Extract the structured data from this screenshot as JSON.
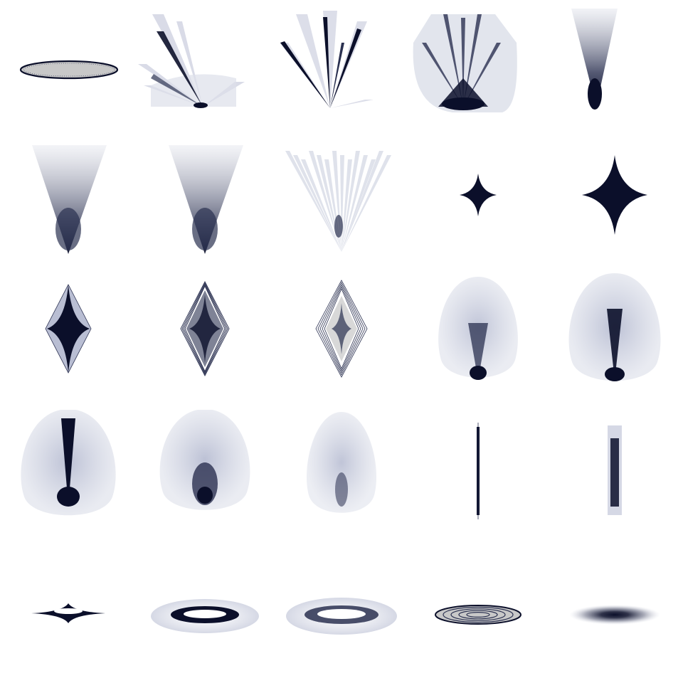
{
  "palette": {
    "ink": "#0b0f2a",
    "mid": "#2a3050",
    "pale": "#b9bed3",
    "ghost": "#dde0ea",
    "grey": "#c8c8c8",
    "background": "#ffffff"
  },
  "grid": {
    "rows": 5,
    "cols": 5
  },
  "glyphs": [
    {
      "shape": "ellipse-outline",
      "icon": "filled-ellipse-icon"
    },
    {
      "shape": "fan-left",
      "icon": "leaning-fan-icon"
    },
    {
      "shape": "fan-spread",
      "icon": "spread-fan-icon"
    },
    {
      "shape": "fan-wide",
      "icon": "wide-fan-icon"
    },
    {
      "shape": "cone-narrow",
      "icon": "narrow-cone-icon"
    },
    {
      "shape": "cone-soft",
      "icon": "soft-cone-icon"
    },
    {
      "shape": "cone-soft",
      "icon": "soft-cone-icon"
    },
    {
      "shape": "cone-streaks",
      "icon": "streak-cone-icon"
    },
    {
      "shape": "star-small",
      "icon": "small-star-icon"
    },
    {
      "shape": "star-large",
      "icon": "large-star-icon"
    },
    {
      "shape": "diamond-dark",
      "icon": "dark-diamond-icon"
    },
    {
      "shape": "diamond-mid",
      "icon": "mesh-diamond-icon"
    },
    {
      "shape": "diamond-light",
      "icon": "light-diamond-icon"
    },
    {
      "shape": "egg-small",
      "icon": "small-egg-icon"
    },
    {
      "shape": "egg-large",
      "icon": "large-egg-icon"
    },
    {
      "shape": "egg-spike",
      "icon": "spiked-egg-icon"
    },
    {
      "shape": "egg-blob",
      "icon": "blob-egg-icon"
    },
    {
      "shape": "egg-faint",
      "icon": "faint-egg-icon"
    },
    {
      "shape": "line-thin",
      "icon": "thin-line-icon"
    },
    {
      "shape": "line-thick",
      "icon": "thick-line-icon"
    },
    {
      "shape": "halo-star",
      "icon": "star-halo-icon"
    },
    {
      "shape": "halo-wide",
      "icon": "wide-halo-icon"
    },
    {
      "shape": "halo-wider",
      "icon": "wider-halo-icon"
    },
    {
      "shape": "rings",
      "icon": "ring-ellipse-icon"
    },
    {
      "shape": "blur-ellipse",
      "icon": "blurred-ellipse-icon"
    }
  ]
}
